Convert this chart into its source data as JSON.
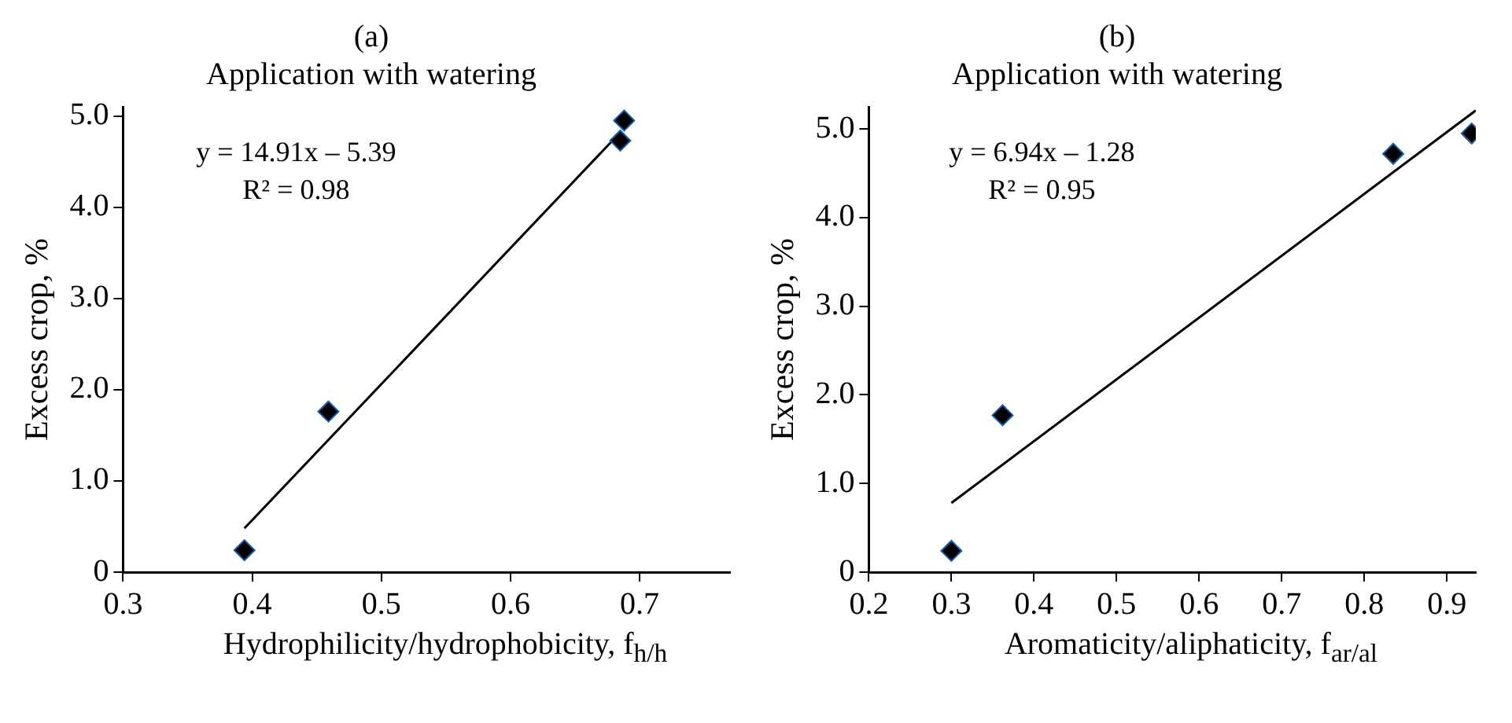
{
  "chart_data": [
    {
      "type": "scatter",
      "title": "(a)",
      "subtitle": "Application with watering",
      "xlabel": "Hydrophilicity/hydrophobicity, f$_{h/h}$",
      "ylabel": "Excess crop, %",
      "annotations": [
        "y = 14.91x – 5.39",
        "R² = 0.98"
      ],
      "series": [
        {
          "color": "#000000",
          "x": [
            0.394,
            0.459,
            0.685,
            0.688
          ],
          "values": [
            0.24,
            1.76,
            4.73,
            4.95
          ],
          "marker": "diamond"
        },
        {
          "type": "line",
          "color": "#000000",
          "x": [
            0.394,
            0.685
          ],
          "values": [
            0.48,
            4.82
          ],
          "marker": "none"
        }
      ],
      "xlim": [
        0.3,
        0.77
      ],
      "xticks": [
        0.3,
        0.4,
        0.5,
        0.6,
        0.7
      ],
      "ylim": [
        0,
        5.1
      ],
      "yticks": [
        0,
        {
          "value": 1,
          "label": "1.0"
        },
        {
          "value": 2,
          "label": "2.0"
        },
        {
          "value": 3,
          "label": "3.0"
        },
        {
          "value": 4,
          "label": "4.0"
        },
        {
          "value": 5,
          "label": "5.0"
        }
      ],
      "grid": false,
      "legend": false
    },
    {
      "type": "scatter",
      "title": "(b)",
      "subtitle": "Application with watering",
      "xlabel": "Aromaticity/aliphaticity, f$_{ar/al}$",
      "ylabel": "Excess crop, %",
      "annotations": [
        "y = 6.94x – 1.28",
        "R² = 0.95"
      ],
      "series": [
        {
          "color": "#000000",
          "x": [
            0.3,
            0.362,
            0.835,
            0.93
          ],
          "values": [
            0.24,
            1.77,
            4.72,
            4.95
          ],
          "marker": "diamond"
        },
        {
          "type": "line",
          "color": "#000000",
          "x": [
            0.3,
            0.935
          ],
          "values": [
            0.78,
            5.21
          ],
          "marker": "none"
        }
      ],
      "xlim": [
        0.2,
        0.935
      ],
      "xticks": [
        0.2,
        0.3,
        0.4,
        0.5,
        0.6,
        0.7,
        0.8,
        0.9
      ],
      "ylim": [
        0,
        5.25
      ],
      "yticks": [
        0,
        {
          "value": 1,
          "label": "1.0"
        },
        {
          "value": 2,
          "label": "2.0"
        },
        {
          "value": 3,
          "label": "3.0"
        },
        {
          "value": 4,
          "label": "4.0"
        },
        {
          "value": 5,
          "label": "5.0"
        }
      ],
      "grid": false,
      "legend": false
    }
  ]
}
